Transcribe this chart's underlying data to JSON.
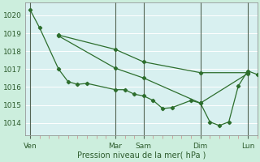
{
  "background_color": "#cceedd",
  "plot_bg_color": "#d8f0f0",
  "grid_color": "#ffffff",
  "tick_line_color": "#cc9999",
  "vline_color": "#556655",
  "line_color": "#2d6e2d",
  "ylabel_ticks": [
    1014,
    1015,
    1016,
    1017,
    1018,
    1019,
    1020
  ],
  "ylim": [
    1013.3,
    1020.7
  ],
  "xlabel": "Pression niveau de la mer( hPa )",
  "xtick_labels": [
    "Ven",
    "Mar",
    "Sam",
    "Dim",
    "Lun"
  ],
  "xtick_positions": [
    0,
    36,
    48,
    72,
    92
  ],
  "xlim": [
    -2,
    96
  ],
  "series1_x": [
    0,
    4,
    12,
    16,
    20,
    24,
    36,
    40,
    44,
    48,
    52,
    56,
    60,
    68,
    72,
    76,
    80,
    84,
    88,
    92,
    96
  ],
  "series1_y": [
    1020.3,
    1019.3,
    1017.0,
    1016.3,
    1016.15,
    1016.2,
    1015.85,
    1015.85,
    1015.6,
    1015.5,
    1015.25,
    1014.8,
    1014.85,
    1015.25,
    1015.1,
    1014.05,
    1013.85,
    1014.05,
    1016.05,
    1016.9,
    1016.7
  ],
  "series2_x": [
    12,
    36,
    48,
    72,
    92
  ],
  "series2_y": [
    1018.9,
    1018.1,
    1017.4,
    1016.8,
    1016.8
  ],
  "series3_x": [
    12,
    36,
    48,
    72,
    92
  ],
  "series3_y": [
    1018.85,
    1017.05,
    1016.5,
    1015.1,
    1016.75
  ],
  "vline_positions": [
    0,
    36,
    48,
    72,
    92
  ],
  "figsize": [
    3.2,
    2.0
  ],
  "dpi": 100
}
